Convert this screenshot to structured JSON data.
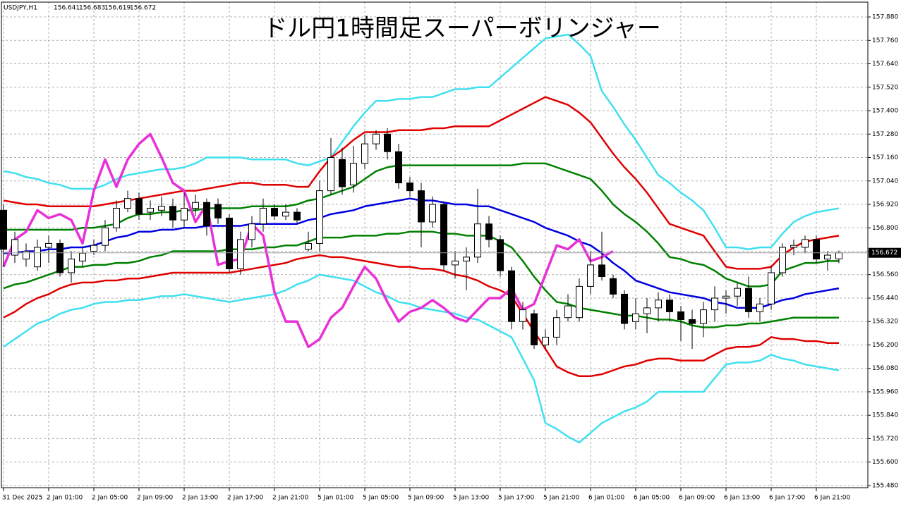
{
  "chart_data": {
    "type": "candlestick",
    "title": "ドル円1時間足スーパーボリンジャー",
    "symbol": "USDJPY,H1",
    "categories": [
      "31 Dec 2025",
      null,
      null,
      null,
      "2 Jan 01:00",
      null,
      null,
      null,
      "2 Jan 05:00",
      null,
      null,
      null,
      "2 Jan 09:00",
      null,
      null,
      null,
      "2 Jan 13:00",
      null,
      null,
      null,
      "2 Jan 17:00",
      null,
      null,
      null,
      "2 Jan 21:00",
      null,
      null,
      null,
      "5 Jan 01:00",
      null,
      null,
      null,
      "5 Jan 05:00",
      null,
      null,
      null,
      "5 Jan 09:00",
      null,
      null,
      null,
      "5 Jan 13:00",
      null,
      null,
      null,
      "5 Jan 17:00",
      null,
      null,
      null,
      "5 Jan 21:00",
      null,
      null,
      null,
      "6 Jan 01:00",
      null,
      null,
      null,
      "6 Jan 05:00",
      null,
      null,
      null,
      "6 Jan 09:00",
      null,
      null,
      null,
      "6 Jan 13:00",
      null,
      null,
      null,
      "6 Jan 17:00",
      null,
      null,
      null,
      "6 Jan 21:00",
      null,
      null
    ],
    "open": [
      156.89,
      156.66,
      156.64,
      156.6,
      156.7,
      156.72,
      156.57,
      156.63,
      156.68,
      156.71,
      156.8,
      156.9,
      156.95,
      156.88,
      156.89,
      156.91,
      156.84,
      156.9,
      156.93,
      156.92,
      156.85,
      156.59,
      156.74,
      156.82,
      156.9,
      156.86,
      156.88,
      156.69,
      156.72,
      156.99,
      157.15,
      157.02,
      157.13,
      157.23,
      157.28,
      157.19,
      157.03,
      156.99,
      156.83,
      156.92,
      156.61,
      156.63,
      156.65,
      156.82,
      156.74,
      156.58,
      156.32,
      156.36,
      156.2,
      156.24,
      156.34,
      156.34,
      156.5,
      156.61,
      156.54,
      156.46,
      156.32,
      156.36,
      156.39,
      156.43,
      156.37,
      156.33,
      156.31,
      156.38,
      156.44,
      156.45,
      156.49,
      156.37,
      156.41,
      156.57,
      156.7,
      156.7,
      156.74,
      156.64,
      156.641
    ],
    "high": [
      156.92,
      156.78,
      156.72,
      156.74,
      156.76,
      156.74,
      156.68,
      156.7,
      156.74,
      156.84,
      156.94,
      156.99,
      156.98,
      156.94,
      156.96,
      156.95,
      156.98,
      156.97,
      156.95,
      156.95,
      156.87,
      156.78,
      156.86,
      156.95,
      156.92,
      156.92,
      156.9,
      156.78,
      157.04,
      157.26,
      157.21,
      157.22,
      157.28,
      157.3,
      157.31,
      157.23,
      157.06,
      157.03,
      156.96,
      156.93,
      156.68,
      156.7,
      157.0,
      156.86,
      156.76,
      156.6,
      156.42,
      156.38,
      156.28,
      156.38,
      156.46,
      156.54,
      156.68,
      156.78,
      156.56,
      156.48,
      156.44,
      156.44,
      156.47,
      156.46,
      156.4,
      156.38,
      156.42,
      156.5,
      156.48,
      156.52,
      156.55,
      156.44,
      156.6,
      156.72,
      156.74,
      156.76,
      156.76,
      156.68,
      156.683
    ],
    "low": [
      156.6,
      156.62,
      156.6,
      156.58,
      156.62,
      156.55,
      156.52,
      156.6,
      156.66,
      156.68,
      156.78,
      156.88,
      156.84,
      156.84,
      156.86,
      156.8,
      156.8,
      156.86,
      156.76,
      156.82,
      156.57,
      156.56,
      156.7,
      156.78,
      156.84,
      156.84,
      156.82,
      156.68,
      156.68,
      156.97,
      156.97,
      156.98,
      157.1,
      157.2,
      157.15,
      157.0,
      156.96,
      156.7,
      156.8,
      156.58,
      156.54,
      156.48,
      156.62,
      156.7,
      156.55,
      156.28,
      156.28,
      156.18,
      156.18,
      156.2,
      156.32,
      156.32,
      156.46,
      156.53,
      156.44,
      156.28,
      156.28,
      156.26,
      156.32,
      156.32,
      156.22,
      156.18,
      156.24,
      156.32,
      156.36,
      156.4,
      156.34,
      156.32,
      156.38,
      156.55,
      156.66,
      156.67,
      156.62,
      156.58,
      156.619
    ],
    "close": [
      156.69,
      156.74,
      156.68,
      156.7,
      156.72,
      156.57,
      156.64,
      156.67,
      156.71,
      156.8,
      156.9,
      156.95,
      156.87,
      156.9,
      156.91,
      156.84,
      156.9,
      156.93,
      156.81,
      156.85,
      156.59,
      156.74,
      156.82,
      156.9,
      156.86,
      156.88,
      156.84,
      156.72,
      156.99,
      157.16,
      157.01,
      157.13,
      157.23,
      157.28,
      157.19,
      157.03,
      156.99,
      156.83,
      156.92,
      156.61,
      156.63,
      156.65,
      156.82,
      156.74,
      156.58,
      156.32,
      156.38,
      156.2,
      156.24,
      156.34,
      156.4,
      156.5,
      156.61,
      156.55,
      156.46,
      156.31,
      156.36,
      156.39,
      156.43,
      156.37,
      156.33,
      156.31,
      156.38,
      156.44,
      156.45,
      156.49,
      156.37,
      156.41,
      156.57,
      156.7,
      156.71,
      156.74,
      156.64,
      156.66,
      156.672
    ],
    "series": [
      {
        "color": "#40e0f0",
        "values": [
          157.09,
          157.08,
          157.06,
          157.05,
          157.03,
          157.02,
          157.0,
          157.0,
          157.0,
          157.02,
          157.05,
          157.07,
          157.08,
          157.09,
          157.1,
          157.1,
          157.11,
          157.13,
          157.16,
          157.16,
          157.16,
          157.16,
          157.15,
          157.15,
          157.15,
          157.15,
          157.13,
          157.12,
          157.14,
          157.16,
          157.24,
          157.32,
          157.39,
          157.45,
          157.45,
          157.46,
          157.46,
          157.47,
          157.47,
          157.49,
          157.51,
          157.51,
          157.52,
          157.52,
          157.57,
          157.62,
          157.67,
          157.72,
          157.77,
          157.78,
          157.79,
          157.74,
          157.68,
          157.5,
          157.42,
          157.33,
          157.25,
          157.16,
          157.07,
          157.03,
          156.98,
          156.94,
          156.89,
          156.8,
          156.7,
          156.7,
          156.69,
          156.7,
          156.7,
          156.77,
          156.83,
          156.86,
          156.88,
          156.89,
          156.9
        ]
      },
      {
        "color": "#e00000",
        "values": [
          156.94,
          156.93,
          156.92,
          156.92,
          156.91,
          156.91,
          156.91,
          156.91,
          156.91,
          156.92,
          156.93,
          156.94,
          156.95,
          156.96,
          156.97,
          156.98,
          156.99,
          156.99,
          157.0,
          157.01,
          157.02,
          157.03,
          157.03,
          157.02,
          157.02,
          157.02,
          157.01,
          157.01,
          157.09,
          157.16,
          157.2,
          157.25,
          157.29,
          157.29,
          157.29,
          157.3,
          157.3,
          157.3,
          157.31,
          157.31,
          157.32,
          157.32,
          157.32,
          157.32,
          157.35,
          157.38,
          157.41,
          157.44,
          157.47,
          157.45,
          157.43,
          157.39,
          157.34,
          157.26,
          157.18,
          157.11,
          157.05,
          156.98,
          156.9,
          156.82,
          156.8,
          156.78,
          156.76,
          156.68,
          156.6,
          156.59,
          156.59,
          156.59,
          156.6,
          156.66,
          156.7,
          156.73,
          156.74,
          156.75,
          156.76
        ]
      },
      {
        "color": "#008000",
        "values": [
          156.79,
          156.79,
          156.79,
          156.79,
          156.79,
          156.79,
          156.79,
          156.8,
          156.8,
          156.81,
          156.82,
          156.85,
          156.87,
          156.87,
          156.88,
          156.88,
          156.89,
          156.89,
          156.9,
          156.9,
          156.9,
          156.9,
          156.91,
          156.91,
          156.91,
          156.91,
          156.92,
          156.94,
          156.95,
          156.97,
          156.99,
          157.01,
          157.05,
          157.09,
          157.11,
          157.12,
          157.12,
          157.12,
          157.12,
          157.12,
          157.12,
          157.12,
          157.12,
          157.12,
          157.12,
          157.12,
          157.13,
          157.13,
          157.13,
          157.11,
          157.09,
          157.07,
          157.05,
          156.99,
          156.92,
          156.87,
          156.83,
          156.78,
          156.72,
          156.65,
          156.64,
          156.62,
          156.61,
          156.58,
          156.54,
          156.52,
          156.5,
          156.5,
          156.51,
          156.58,
          156.6,
          156.62,
          156.62,
          156.63,
          156.63
        ]
      },
      {
        "color": "#0000e0",
        "values": [
          156.67,
          156.67,
          156.68,
          156.68,
          156.69,
          156.69,
          156.7,
          156.7,
          156.71,
          156.73,
          156.75,
          156.76,
          156.78,
          156.78,
          156.79,
          156.79,
          156.8,
          156.8,
          156.81,
          156.81,
          156.81,
          156.81,
          156.82,
          156.82,
          156.82,
          156.82,
          156.82,
          156.84,
          156.85,
          156.87,
          156.88,
          156.89,
          156.91,
          156.92,
          156.93,
          156.94,
          156.95,
          156.94,
          156.94,
          156.93,
          156.92,
          156.92,
          156.91,
          156.91,
          156.89,
          156.87,
          156.85,
          156.83,
          156.8,
          156.78,
          156.76,
          156.73,
          156.71,
          156.67,
          156.62,
          156.58,
          156.53,
          156.51,
          156.49,
          156.47,
          156.46,
          156.45,
          156.44,
          156.42,
          156.41,
          156.39,
          156.39,
          156.39,
          156.41,
          156.43,
          156.44,
          156.46,
          156.47,
          156.48,
          156.49
        ]
      },
      {
        "color": "#008000",
        "values": [
          156.49,
          156.51,
          156.52,
          156.54,
          156.56,
          156.58,
          156.6,
          156.6,
          156.61,
          156.61,
          156.62,
          156.62,
          156.63,
          156.65,
          156.66,
          156.68,
          156.68,
          156.68,
          156.68,
          156.68,
          156.69,
          156.69,
          156.69,
          156.7,
          156.7,
          156.71,
          156.71,
          156.73,
          156.75,
          156.75,
          156.75,
          156.76,
          156.76,
          156.76,
          156.77,
          156.77,
          156.78,
          156.78,
          156.78,
          156.77,
          156.77,
          156.76,
          156.76,
          156.76,
          156.73,
          156.7,
          156.63,
          156.55,
          156.48,
          156.42,
          156.41,
          156.39,
          156.38,
          156.37,
          156.36,
          156.35,
          156.35,
          156.34,
          156.33,
          156.33,
          156.32,
          156.3,
          156.29,
          156.29,
          156.3,
          156.3,
          156.31,
          156.31,
          156.32,
          156.33,
          156.34,
          156.34,
          156.34,
          156.34,
          156.34
        ]
      },
      {
        "color": "#e00000",
        "values": [
          156.34,
          156.37,
          156.41,
          156.44,
          156.46,
          156.49,
          156.51,
          156.52,
          156.52,
          156.53,
          156.53,
          156.54,
          156.54,
          156.55,
          156.56,
          156.57,
          156.57,
          156.57,
          156.57,
          156.57,
          156.57,
          156.58,
          156.59,
          156.6,
          156.61,
          156.62,
          156.64,
          156.65,
          156.66,
          156.65,
          156.65,
          156.64,
          156.63,
          156.62,
          156.61,
          156.6,
          156.6,
          156.59,
          156.59,
          156.58,
          156.56,
          156.55,
          156.53,
          156.5,
          156.48,
          156.45,
          156.36,
          156.27,
          156.18,
          156.09,
          156.06,
          156.04,
          156.04,
          156.05,
          156.07,
          156.09,
          156.1,
          156.12,
          156.13,
          156.13,
          156.12,
          156.12,
          156.12,
          156.15,
          156.18,
          156.19,
          156.19,
          156.2,
          156.24,
          156.23,
          156.23,
          156.22,
          156.22,
          156.21,
          156.21
        ]
      },
      {
        "color": "#40e0f0",
        "values": [
          156.19,
          156.23,
          156.27,
          156.31,
          156.33,
          156.36,
          156.38,
          156.39,
          156.41,
          156.42,
          156.42,
          156.43,
          156.43,
          156.44,
          156.45,
          156.45,
          156.46,
          156.45,
          156.44,
          156.43,
          156.42,
          156.43,
          156.44,
          156.45,
          156.46,
          156.48,
          156.51,
          156.53,
          156.56,
          156.55,
          156.54,
          156.53,
          156.5,
          156.47,
          156.45,
          156.42,
          156.41,
          156.39,
          156.38,
          156.37,
          156.36,
          156.34,
          156.33,
          156.3,
          156.27,
          156.24,
          156.13,
          156.02,
          155.8,
          155.77,
          155.73,
          155.7,
          155.75,
          155.8,
          155.83,
          155.86,
          155.88,
          155.91,
          155.96,
          155.96,
          155.96,
          155.96,
          155.96,
          156.03,
          156.1,
          156.11,
          156.11,
          156.12,
          156.15,
          156.13,
          156.12,
          156.1,
          156.09,
          156.08,
          156.07
        ]
      },
      {
        "color": "#e830d8",
        "values": [
          156.6,
          156.74,
          156.78,
          156.89,
          156.85,
          156.87,
          156.84,
          156.72,
          156.99,
          157.15,
          157.01,
          157.15,
          157.23,
          157.28,
          157.16,
          157.03,
          156.99,
          156.83,
          156.92,
          156.61,
          156.63,
          156.64,
          156.82,
          156.76,
          156.47,
          156.32,
          156.32,
          156.19,
          156.23,
          156.34,
          156.39,
          156.5,
          156.6,
          156.54,
          156.42,
          156.32,
          156.37,
          156.39,
          156.43,
          156.39,
          156.34,
          156.32,
          156.38,
          156.44,
          156.44,
          156.49,
          156.38,
          156.41,
          156.56,
          156.71,
          156.69,
          156.74,
          156.63,
          156.65,
          156.68,
          null,
          null,
          null,
          null,
          null,
          null,
          null,
          null,
          null,
          null,
          null,
          null,
          null,
          null,
          null,
          null,
          null,
          null,
          null,
          null
        ]
      }
    ],
    "ylim": [
      155.469,
      157.956
    ],
    "yticks": [
      {
        "value": 157.88,
        "label": "157.880"
      },
      {
        "value": 157.76,
        "label": "157.760"
      },
      {
        "value": 157.64,
        "label": "157.640"
      },
      {
        "value": 157.52,
        "label": "157.520"
      },
      {
        "value": 157.4,
        "label": "157.400"
      },
      {
        "value": 157.28,
        "label": "157.280"
      },
      {
        "value": 157.16,
        "label": "157.160"
      },
      {
        "value": 157.04,
        "label": "157.040"
      },
      {
        "value": 156.92,
        "label": "156.920"
      },
      {
        "value": 156.8,
        "label": "156.800"
      },
      {
        "value": 156.68,
        "label": "156.680"
      },
      {
        "value": 156.56,
        "label": "156.560"
      },
      {
        "value": 156.44,
        "label": "156.440"
      },
      {
        "value": 156.32,
        "label": "156.320"
      },
      {
        "value": 156.2,
        "label": "156.200"
      },
      {
        "value": 156.08,
        "label": "156.080"
      },
      {
        "value": 155.96,
        "label": "155.960"
      },
      {
        "value": 155.84,
        "label": "155.840"
      },
      {
        "value": 155.72,
        "label": "155.720"
      },
      {
        "value": 155.6,
        "label": "155.600"
      },
      {
        "value": 155.48,
        "label": "155.480"
      }
    ],
    "grid": true
  }
}
